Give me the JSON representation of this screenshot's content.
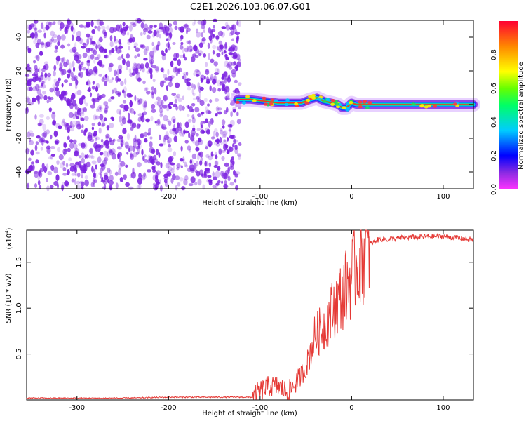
{
  "title": "C2E1.2026.103.06.07.G01",
  "colors": {
    "snr_line": "#e53935",
    "scatter_dots": "#7a1fe0",
    "axis": "#000000"
  },
  "chart_data": [
    {
      "type": "heatmap",
      "xlabel": "Height of straight line (km)",
      "ylabel": "Frequency (Hz)",
      "xlim": [
        -355,
        133
      ],
      "ylim": [
        -50,
        50
      ],
      "xticks": [
        -300,
        -200,
        -100,
        0,
        100
      ],
      "yticks": [
        -40,
        -20,
        0,
        20,
        40
      ],
      "noise_region": {
        "x": [
          -355,
          -122
        ],
        "y": [
          -50,
          50
        ]
      },
      "ridge": {
        "x": [
          -125,
          -110,
          -95,
          -80,
          -65,
          -55,
          -45,
          -38,
          -30,
          -22,
          -15,
          -10,
          -6,
          0,
          5,
          20,
          60,
          100,
          133
        ],
        "y": [
          3,
          3,
          2,
          1,
          1,
          1,
          3,
          4,
          2,
          1,
          0,
          -2,
          -2,
          1,
          0,
          0,
          0,
          0,
          0
        ]
      },
      "colorbar": {
        "label": "Normalized spectral amplitude",
        "range": [
          0,
          1
        ],
        "ticks": [
          0.0,
          0.2,
          0.4,
          0.6,
          0.8
        ]
      }
    },
    {
      "type": "line",
      "xlabel": "Height of straight line (km)",
      "ylabel": "SNR (10 * v/v)",
      "y_multiplier_label": "(x10",
      "y_multiplier_exp": "4",
      "y_multiplier_close": ")",
      "xlim": [
        -355,
        133
      ],
      "ylim": [
        0,
        1.85
      ],
      "xticks": [
        -300,
        -200,
        -100,
        0,
        100
      ],
      "yticks": [
        0.5,
        1.0,
        1.5
      ],
      "ytick_labels": [
        "0.5",
        "1.0",
        "1.5"
      ],
      "series": [
        {
          "x": [
            -355,
            -300,
            -250,
            -200,
            -150,
            -108,
            -100,
            -90,
            -80,
            -70,
            -60,
            -50,
            -40,
            -30,
            -20,
            -10,
            0,
            10,
            20,
            30,
            40,
            60,
            80,
            100,
            120,
            133
          ],
          "y": [
            0.02,
            0.02,
            0.02,
            0.03,
            0.03,
            0.03,
            0.1,
            0.15,
            0.15,
            0.08,
            0.2,
            0.35,
            0.7,
            0.8,
            1.0,
            1.15,
            1.35,
            1.55,
            1.7,
            1.75,
            1.75,
            1.77,
            1.78,
            1.78,
            1.76,
            1.74
          ]
        }
      ]
    }
  ]
}
